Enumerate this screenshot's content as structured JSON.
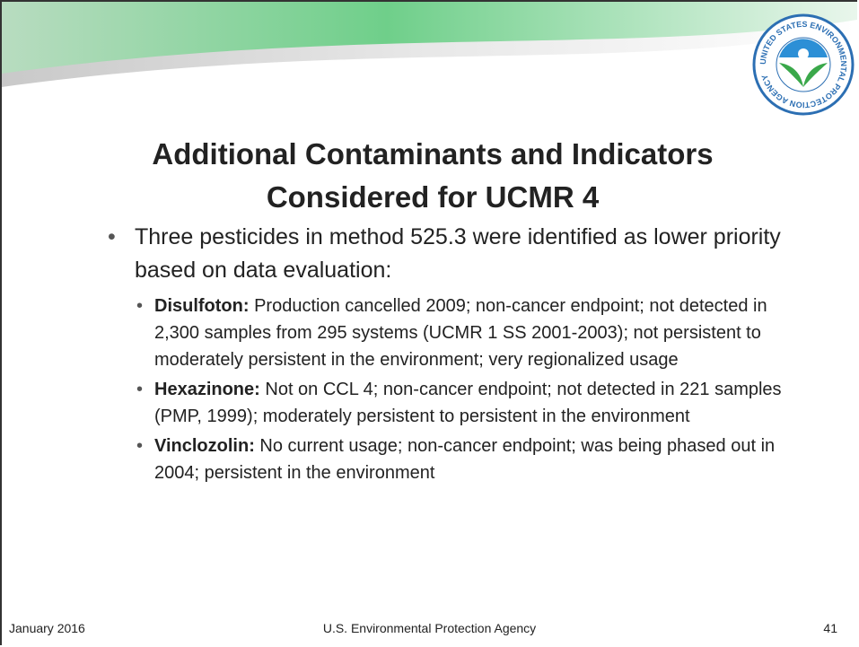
{
  "slide": {
    "logo_text": "UNITED STATES ENVIRONMENTAL PROTECTION AGENCY",
    "title": [
      "Additional Contaminants and Indicators",
      "Considered for UCMR 4"
    ],
    "bullets": [
      {
        "text": "Three pesticides in method 525.3 were identified as lower priority based on data evaluation:",
        "sub": [
          {
            "term": "Disulfoton:",
            "text": "Production cancelled 2009; non-cancer endpoint; not detected in 2,300 samples from 295 systems (UCMR 1 SS 2001-2003); not persistent to moderately persistent in the environment; very regionalized usage"
          },
          {
            "term": "Hexazinone:",
            "text": "Not on CCL 4; non-cancer endpoint; not detected in 221 samples (PMP, 1999); moderately persistent to persistent in the environment"
          },
          {
            "term": "Vinclozolin:",
            "text": "No current usage; non-cancer endpoint; was being phased out in 2004; persistent in the environment"
          }
        ]
      }
    ],
    "footer": {
      "date": "January 2016",
      "agency": "U.S. Environmental Protection Agency",
      "page": "41"
    }
  }
}
